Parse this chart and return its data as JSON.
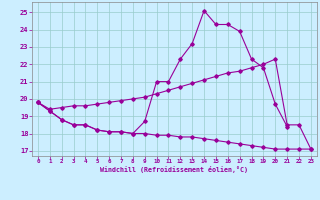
{
  "xlabel": "Windchill (Refroidissement éolien,°C)",
  "bg_color": "#cceeff",
  "line_color": "#990099",
  "grid_color": "#99cccc",
  "ylim": [
    16.7,
    25.6
  ],
  "yticks": [
    17,
    18,
    19,
    20,
    21,
    22,
    23,
    24,
    25
  ],
  "xlim": [
    -0.5,
    23.5
  ],
  "xticks": [
    0,
    1,
    2,
    3,
    4,
    5,
    6,
    7,
    8,
    9,
    10,
    11,
    12,
    13,
    14,
    15,
    16,
    17,
    18,
    19,
    20,
    21,
    22,
    23
  ],
  "x_upper": [
    0,
    1,
    2,
    3,
    4,
    5,
    6,
    7,
    8,
    9,
    10,
    11,
    12,
    13,
    14,
    15,
    16,
    17,
    18,
    19,
    20,
    21
  ],
  "y_upper": [
    19.8,
    19.3,
    18.8,
    18.5,
    18.5,
    18.2,
    18.1,
    18.1,
    18.0,
    18.7,
    21.0,
    21.0,
    22.3,
    23.2,
    25.1,
    24.3,
    24.3,
    23.9,
    22.3,
    21.8,
    19.7,
    18.4
  ],
  "x_mid": [
    0,
    1,
    2,
    3,
    4,
    5,
    6,
    7,
    8,
    9,
    10,
    11,
    12,
    13,
    14,
    15,
    16,
    17,
    18,
    19,
    20,
    21,
    22,
    23
  ],
  "y_mid": [
    19.8,
    19.4,
    19.5,
    19.6,
    19.6,
    19.7,
    19.8,
    19.9,
    20.0,
    20.1,
    20.3,
    20.5,
    20.7,
    20.9,
    21.1,
    21.3,
    21.5,
    21.6,
    21.8,
    22.0,
    22.3,
    18.5,
    18.5,
    17.1
  ],
  "x_lower": [
    0,
    1,
    2,
    3,
    4,
    5,
    6,
    7,
    8,
    9,
    10,
    11,
    12,
    13,
    14,
    15,
    16,
    17,
    18,
    19,
    20,
    21,
    22,
    23
  ],
  "y_lower": [
    19.8,
    19.3,
    18.8,
    18.5,
    18.5,
    18.2,
    18.1,
    18.1,
    18.0,
    18.0,
    17.9,
    17.9,
    17.8,
    17.8,
    17.7,
    17.6,
    17.5,
    17.4,
    17.3,
    17.2,
    17.1,
    17.1,
    17.1,
    17.1
  ]
}
